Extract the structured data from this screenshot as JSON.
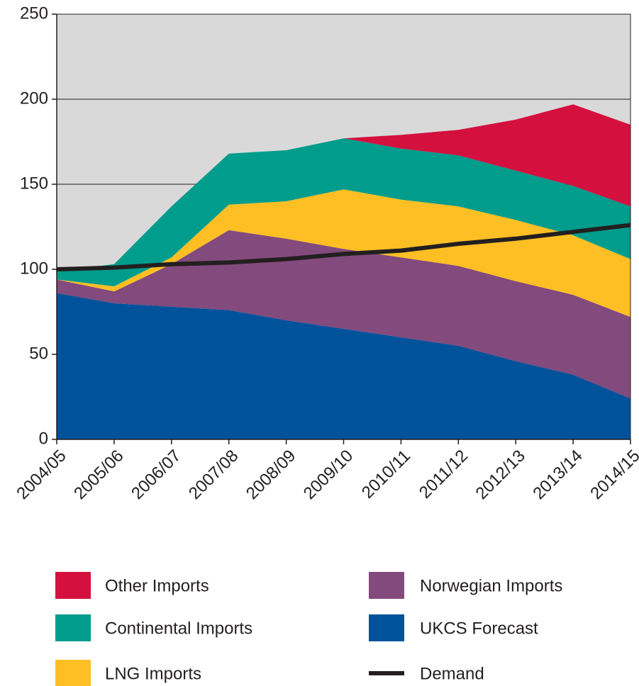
{
  "chart_data": {
    "type": "stacked_area",
    "categories": [
      "2004/05",
      "2005/06",
      "2006/07",
      "2007/08",
      "2008/09",
      "2009/10",
      "2010/11",
      "2011/12",
      "2012/13",
      "2013/14",
      "2014/15"
    ],
    "series": [
      {
        "name": "UKCS Forecast",
        "color": "#00529b",
        "values": [
          86,
          80,
          78,
          76,
          70,
          65,
          60,
          55,
          46,
          38,
          24
        ]
      },
      {
        "name": "Norwegian Imports",
        "color": "#834a7d",
        "values": [
          8,
          7,
          25,
          47,
          48,
          47,
          47,
          47,
          47,
          47,
          48
        ]
      },
      {
        "name": "LNG Imports",
        "color": "#fdbf24",
        "values": [
          0,
          3,
          4,
          15,
          22,
          35,
          34,
          35,
          36,
          35,
          34
        ]
      },
      {
        "name": "Continental Imports",
        "color": "#009c8c",
        "values": [
          5,
          13,
          30,
          30,
          30,
          30,
          30,
          30,
          29,
          29,
          31
        ]
      },
      {
        "name": "Other Imports",
        "color": "#d4103f",
        "values": [
          0,
          0,
          0,
          0,
          0,
          0,
          8,
          15,
          30,
          48,
          48
        ]
      },
      {
        "name": "Demand",
        "color": "#231f20",
        "kind": "line",
        "values": [
          100,
          101,
          103,
          104,
          106,
          109,
          111,
          115,
          118,
          122,
          126
        ]
      }
    ],
    "ylim": [
      0,
      250
    ],
    "yticks": [
      0,
      50,
      100,
      150,
      200,
      250
    ],
    "grid": true,
    "background": "#d9d9d9"
  }
}
